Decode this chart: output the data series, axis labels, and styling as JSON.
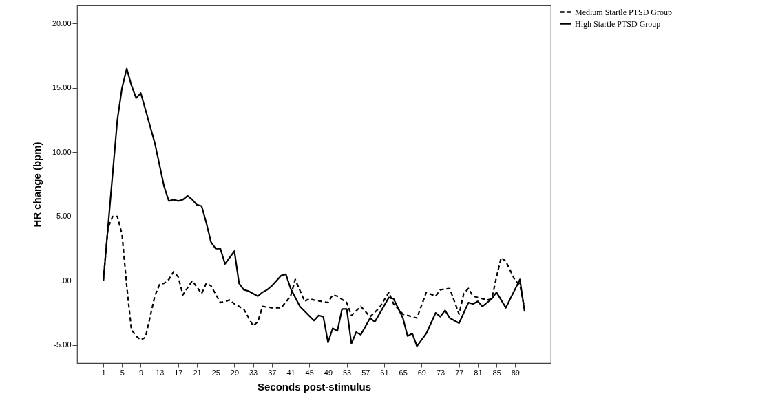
{
  "chart_data": {
    "type": "line",
    "xlabel": "Seconds post-stimulus",
    "ylabel": "HR change (bpm)",
    "xlim": [
      -4.6,
      96.6
    ],
    "xticks": [
      1,
      5,
      9,
      13,
      17,
      21,
      25,
      29,
      33,
      37,
      41,
      45,
      49,
      53,
      57,
      61,
      65,
      69,
      73,
      77,
      81,
      85,
      89
    ],
    "ylim": [
      -6.4,
      21.4
    ],
    "yticks": [
      {
        "value": -5,
        "label": "-5.00"
      },
      {
        "value": 0,
        "label": ".00"
      },
      {
        "value": 5,
        "label": "5.00"
      },
      {
        "value": 10,
        "label": "10.00"
      },
      {
        "value": 15,
        "label": "15.00"
      },
      {
        "value": 20,
        "label": "20.00"
      }
    ],
    "grid": false,
    "legend": "top right",
    "marker": "none",
    "series": [
      {
        "name": "Medium Startle PTSD Group",
        "color": "#000000",
        "line_style": "dashed",
        "x": [
          1,
          2,
          3,
          4,
          5,
          6,
          7,
          8,
          9,
          10,
          11,
          12,
          13,
          14,
          15,
          16,
          17,
          18,
          20,
          22,
          23,
          24,
          26,
          28,
          29,
          31,
          33,
          34,
          35,
          37,
          39,
          41,
          42,
          44,
          45,
          46,
          49,
          50,
          51,
          53,
          54,
          56,
          58,
          60,
          62,
          63,
          65,
          68,
          70,
          72,
          73,
          75,
          77,
          78,
          79,
          80,
          83,
          84,
          85,
          86,
          87,
          89,
          90,
          91
        ],
        "values": [
          0,
          4.1,
          5.0,
          5.0,
          3.6,
          -0.4,
          -3.8,
          -4.3,
          -4.6,
          -4.4,
          -2.8,
          -1.2,
          -0.3,
          -0.2,
          0.1,
          0.7,
          0.3,
          -1.1,
          0,
          -1.0,
          -0.2,
          -0.4,
          -1.7,
          -1.5,
          -1.8,
          -2.2,
          -3.5,
          -3.2,
          -2.0,
          -2.1,
          -2.1,
          -1.2,
          0.1,
          -1.6,
          -1.4,
          -1.5,
          -1.7,
          -1.1,
          -1.2,
          -1.7,
          -2.7,
          -2.0,
          -2.8,
          -2.1,
          -0.9,
          -1.8,
          -2.6,
          -2.9,
          -0.9,
          -1.2,
          -0.7,
          -0.6,
          -2.6,
          -1.0,
          -0.6,
          -1.2,
          -1.5,
          -1.4,
          0.3,
          1.8,
          1.5,
          0,
          -0.3,
          -2.2
        ]
      },
      {
        "name": "High Startle PTSD Group",
        "color": "#000000",
        "line_style": "solid",
        "x": [
          1,
          4,
          5,
          6,
          7,
          8,
          9,
          10,
          12,
          14,
          15,
          16,
          17,
          18,
          19,
          20,
          21,
          22,
          23,
          24,
          25,
          26,
          27,
          29,
          30,
          31,
          32,
          34,
          35,
          36,
          37,
          38,
          39,
          40,
          41,
          43,
          46,
          47,
          48,
          49,
          50,
          51,
          52,
          53,
          54,
          55,
          56,
          58,
          59,
          62,
          63,
          65,
          66,
          67,
          68,
          70,
          72,
          73,
          74,
          75,
          77,
          79,
          80,
          81,
          82,
          84,
          85,
          87,
          90,
          91
        ],
        "values": [
          0,
          12.5,
          15.0,
          16.5,
          15.2,
          14.2,
          14.6,
          13.3,
          10.7,
          7.3,
          6.2,
          6.3,
          6.2,
          6.3,
          6.6,
          6.3,
          5.9,
          5.8,
          4.5,
          3.0,
          2.5,
          2.5,
          1.3,
          2.3,
          -0.2,
          -0.7,
          -0.8,
          -1.2,
          -0.9,
          -0.7,
          -0.4,
          0,
          0.4,
          0.5,
          -0.6,
          -2.0,
          -3.1,
          -2.7,
          -2.8,
          -4.8,
          -3.7,
          -3.9,
          -2.2,
          -2.2,
          -4.9,
          -4.0,
          -4.2,
          -2.9,
          -3.2,
          -1.3,
          -1.4,
          -2.9,
          -4.3,
          -4.1,
          -5.1,
          -4.1,
          -2.5,
          -2.8,
          -2.3,
          -2.9,
          -3.3,
          -1.7,
          -1.8,
          -1.6,
          -2.0,
          -1.4,
          -0.9,
          -2.1,
          0.1,
          -2.4
        ]
      }
    ]
  }
}
